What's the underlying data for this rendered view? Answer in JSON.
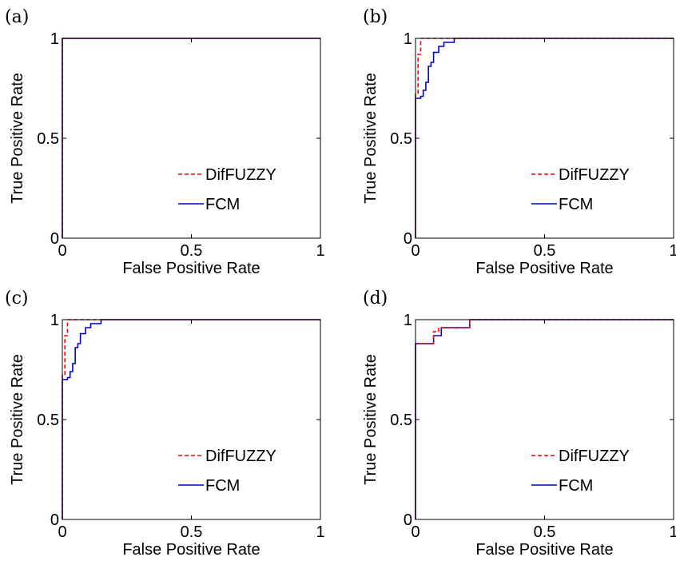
{
  "colors": {
    "difuzzy": "#ff0000",
    "fcm": "#0000cc"
  },
  "chart_data": [
    {
      "panel": "(a)",
      "type": "line",
      "xlabel": "False Positive Rate",
      "ylabel": "True Positive Rate",
      "xlim": [
        0,
        1
      ],
      "ylim": [
        0,
        1
      ],
      "xticks": [
        "0",
        "0.5",
        "1"
      ],
      "yticks": [
        "0",
        "0.5",
        "1"
      ],
      "legend_position": "lower-right",
      "grid": false,
      "series": [
        {
          "name": "DifFUZZY",
          "style": "dashed",
          "color": "#ff0000",
          "x": [
            0,
            0,
            1
          ],
          "y": [
            0,
            1,
            1
          ]
        },
        {
          "name": "FCM",
          "style": "solid",
          "color": "#0000cc",
          "x": [
            0,
            0,
            1
          ],
          "y": [
            0,
            1,
            1
          ]
        }
      ]
    },
    {
      "panel": "(b)",
      "type": "line",
      "xlabel": "False Positive Rate",
      "ylabel": "True Positive Rate",
      "xlim": [
        0,
        1
      ],
      "ylim": [
        0,
        1
      ],
      "xticks": [
        "0",
        "0.5",
        "1"
      ],
      "yticks": [
        "0",
        "0.5",
        "1"
      ],
      "legend_position": "lower-right",
      "grid": false,
      "series": [
        {
          "name": "DifFUZZY",
          "style": "dashed",
          "color": "#ff0000",
          "x": [
            0,
            0,
            0.01,
            0.01,
            0.02,
            0.02,
            1
          ],
          "y": [
            0,
            0.72,
            0.72,
            0.92,
            0.92,
            1,
            1
          ]
        },
        {
          "name": "FCM",
          "style": "solid",
          "color": "#0000cc",
          "x": [
            0,
            0,
            0.02,
            0.02,
            0.03,
            0.03,
            0.04,
            0.04,
            0.05,
            0.05,
            0.06,
            0.06,
            0.07,
            0.07,
            0.09,
            0.09,
            0.11,
            0.11,
            0.15,
            0.15,
            1
          ],
          "y": [
            0,
            0.7,
            0.7,
            0.71,
            0.71,
            0.74,
            0.74,
            0.78,
            0.78,
            0.86,
            0.86,
            0.88,
            0.88,
            0.93,
            0.93,
            0.96,
            0.96,
            0.98,
            0.98,
            1,
            1
          ]
        }
      ]
    },
    {
      "panel": "(c)",
      "type": "line",
      "xlabel": "False Positive Rate",
      "ylabel": "True Positive Rate",
      "xlim": [
        0,
        1
      ],
      "ylim": [
        0,
        1
      ],
      "xticks": [
        "0",
        "0.5",
        "1"
      ],
      "yticks": [
        "0",
        "0.5",
        "1"
      ],
      "legend_position": "lower-right",
      "grid": false,
      "series": [
        {
          "name": "DifFUZZY",
          "style": "dashed",
          "color": "#ff0000",
          "x": [
            0,
            0,
            0.01,
            0.01,
            0.02,
            0.02,
            1
          ],
          "y": [
            0,
            0.72,
            0.72,
            0.92,
            0.92,
            1,
            1
          ]
        },
        {
          "name": "FCM",
          "style": "solid",
          "color": "#0000cc",
          "x": [
            0,
            0,
            0.02,
            0.02,
            0.03,
            0.03,
            0.04,
            0.04,
            0.05,
            0.05,
            0.06,
            0.06,
            0.07,
            0.07,
            0.09,
            0.09,
            0.11,
            0.11,
            0.15,
            0.15,
            1
          ],
          "y": [
            0,
            0.7,
            0.7,
            0.71,
            0.71,
            0.74,
            0.74,
            0.78,
            0.78,
            0.86,
            0.86,
            0.88,
            0.88,
            0.93,
            0.93,
            0.96,
            0.96,
            0.98,
            0.98,
            1,
            1
          ]
        }
      ]
    },
    {
      "panel": "(d)",
      "type": "line",
      "xlabel": "False Positive Rate",
      "ylabel": "True Positive Rate",
      "xlim": [
        0,
        1
      ],
      "ylim": [
        0,
        1
      ],
      "xticks": [
        "0",
        "0.5",
        "1"
      ],
      "yticks": [
        "0",
        "0.5",
        "1"
      ],
      "legend_position": "lower-right",
      "grid": false,
      "series": [
        {
          "name": "DifFUZZY",
          "style": "dashed",
          "color": "#ff0000",
          "x": [
            0,
            0,
            0.07,
            0.07,
            0.09,
            0.09,
            0.21,
            0.21,
            1
          ],
          "y": [
            0,
            0.88,
            0.88,
            0.94,
            0.94,
            0.96,
            0.96,
            1,
            1
          ]
        },
        {
          "name": "FCM",
          "style": "solid",
          "color": "#0000cc",
          "x": [
            0,
            0,
            0.07,
            0.07,
            0.1,
            0.1,
            0.21,
            0.21,
            1
          ],
          "y": [
            0,
            0.88,
            0.88,
            0.92,
            0.92,
            0.96,
            0.96,
            1,
            1
          ]
        }
      ]
    }
  ]
}
